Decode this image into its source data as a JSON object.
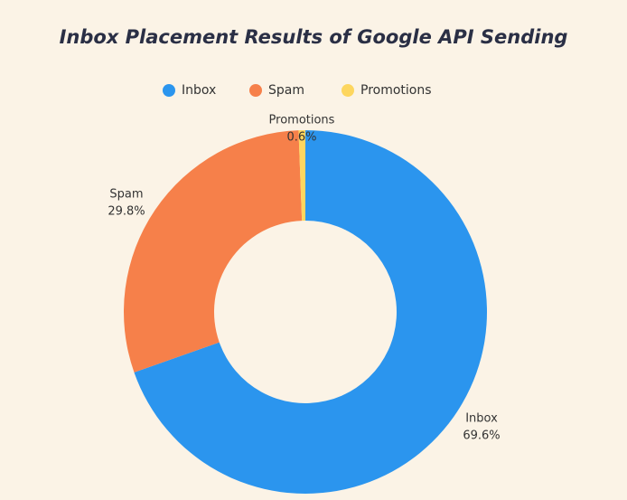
{
  "chart_data": {
    "type": "donut",
    "title": "Inbox Placement Results of Google API Sending",
    "categories": [
      "Inbox",
      "Spam",
      "Promotions"
    ],
    "values": [
      69.6,
      29.8,
      0.6
    ],
    "value_labels": [
      "69.6%",
      "29.8%",
      "0.6%"
    ],
    "colors": [
      "#2b95ee",
      "#f6804a",
      "#fdd65f"
    ],
    "legend": "top"
  }
}
